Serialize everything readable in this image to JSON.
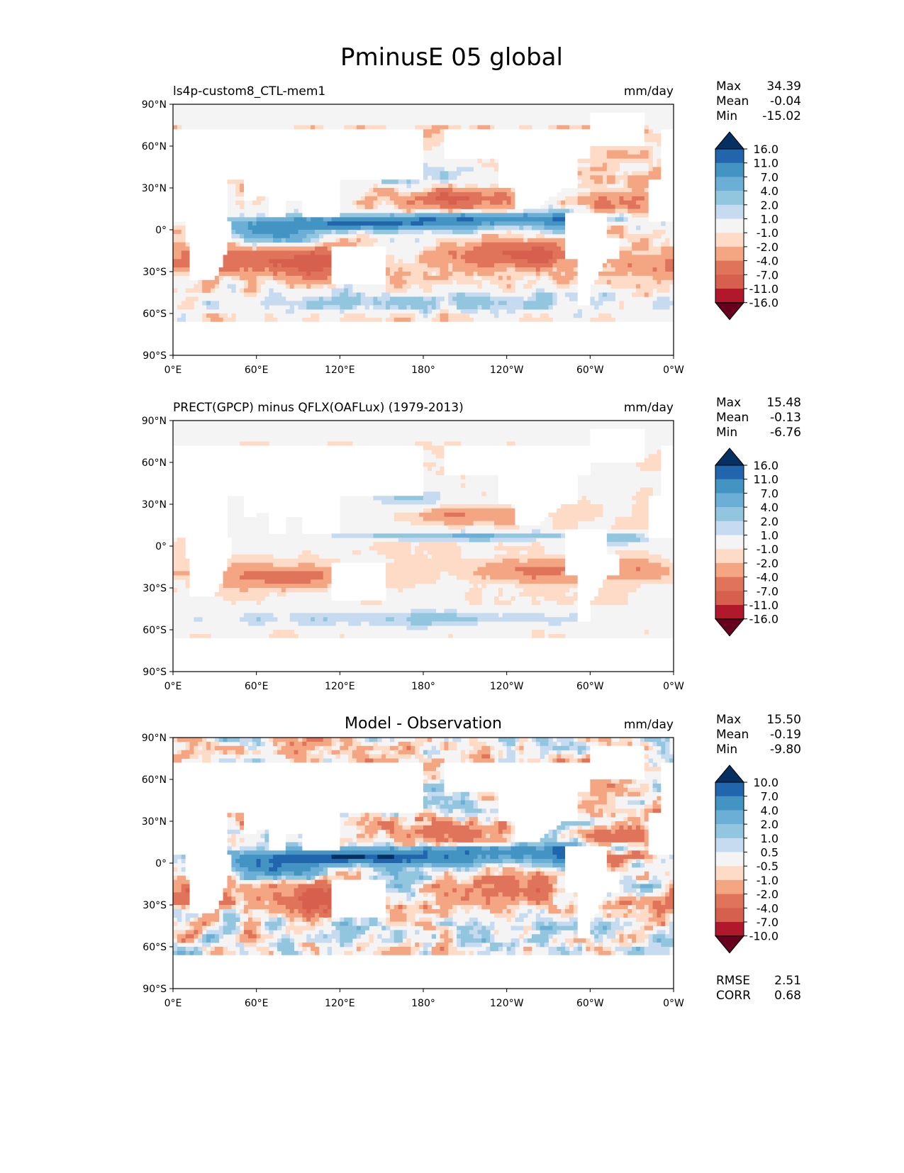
{
  "figure_title": "PminusE 05 global",
  "chart_data": [
    {
      "type": "heatmap",
      "panel": "model",
      "title_left": "ls4p-custom8_CTL-mem1",
      "title_center": "",
      "units": "mm/day",
      "stats": [
        {
          "label": "Max",
          "value": "34.39"
        },
        {
          "label": "Mean",
          "value": "-0.04"
        },
        {
          "label": "Min",
          "value": "-15.02"
        }
      ],
      "extra_stats": [],
      "x_ticks": [
        "0°E",
        "60°E",
        "120°E",
        "180°",
        "120°W",
        "60°W",
        "0°W"
      ],
      "y_ticks": [
        "90°N",
        "60°N",
        "30°N",
        "0°",
        "30°S",
        "60°S",
        "90°S"
      ],
      "xlim": [
        0,
        360
      ],
      "ylim": [
        -90,
        90
      ],
      "colorbar_levels": [
        "16.0",
        "11.0",
        "7.0",
        "4.0",
        "2.0",
        "1.0",
        "-1.0",
        "-2.0",
        "-4.0",
        "-7.0",
        "-11.0",
        "-16.0"
      ],
      "colorbar_colors": [
        "#053061",
        "#2166ac",
        "#4393c3",
        "#6baed6",
        "#92c5de",
        "#c6dbef",
        "#f4f4f4",
        "#fddbc7",
        "#f4a582",
        "#e0745a",
        "#d6604d",
        "#b2182b",
        "#67001f"
      ]
    },
    {
      "type": "heatmap",
      "panel": "observation",
      "title_left": "PRECT(GPCP) minus QFLX(OAFLux) (1979-2013)",
      "title_center": "",
      "units": "mm/day",
      "stats": [
        {
          "label": "Max",
          "value": "15.48"
        },
        {
          "label": "Mean",
          "value": "-0.13"
        },
        {
          "label": "Min",
          "value": "-6.76"
        }
      ],
      "extra_stats": [],
      "x_ticks": [
        "0°E",
        "60°E",
        "120°E",
        "180°",
        "120°W",
        "60°W",
        "0°W"
      ],
      "y_ticks": [
        "90°N",
        "60°N",
        "30°N",
        "0°",
        "30°S",
        "60°S",
        "90°S"
      ],
      "xlim": [
        0,
        360
      ],
      "ylim": [
        -90,
        90
      ],
      "colorbar_levels": [
        "16.0",
        "11.0",
        "7.0",
        "4.0",
        "2.0",
        "1.0",
        "-1.0",
        "-2.0",
        "-4.0",
        "-7.0",
        "-11.0",
        "-16.0"
      ],
      "colorbar_colors": [
        "#053061",
        "#2166ac",
        "#4393c3",
        "#6baed6",
        "#92c5de",
        "#c6dbef",
        "#f4f4f4",
        "#fddbc7",
        "#f4a582",
        "#e0745a",
        "#d6604d",
        "#b2182b",
        "#67001f"
      ]
    },
    {
      "type": "heatmap",
      "panel": "difference",
      "title_left": "",
      "title_center": "Model - Observation",
      "units": "mm/day",
      "stats": [
        {
          "label": "Max",
          "value": "15.50"
        },
        {
          "label": "Mean",
          "value": "-0.19"
        },
        {
          "label": "Min",
          "value": "-9.80"
        }
      ],
      "extra_stats": [
        {
          "label": "RMSE",
          "value": "2.51"
        },
        {
          "label": "CORR",
          "value": "0.68"
        }
      ],
      "x_ticks": [
        "0°E",
        "60°E",
        "120°E",
        "180°",
        "120°W",
        "60°W",
        "0°W"
      ],
      "y_ticks": [
        "90°N",
        "60°N",
        "30°N",
        "0°",
        "30°S",
        "60°S",
        "90°S"
      ],
      "xlim": [
        0,
        360
      ],
      "ylim": [
        -90,
        90
      ],
      "colorbar_levels": [
        "10.0",
        "7.0",
        "4.0",
        "2.0",
        "1.0",
        "0.5",
        "-0.5",
        "-1.0",
        "-2.0",
        "-4.0",
        "-7.0",
        "-10.0"
      ],
      "colorbar_colors": [
        "#053061",
        "#2166ac",
        "#4393c3",
        "#6baed6",
        "#92c5de",
        "#c6dbef",
        "#f4f4f4",
        "#fddbc7",
        "#f4a582",
        "#e0745a",
        "#d6604d",
        "#b2182b",
        "#67001f"
      ]
    }
  ]
}
